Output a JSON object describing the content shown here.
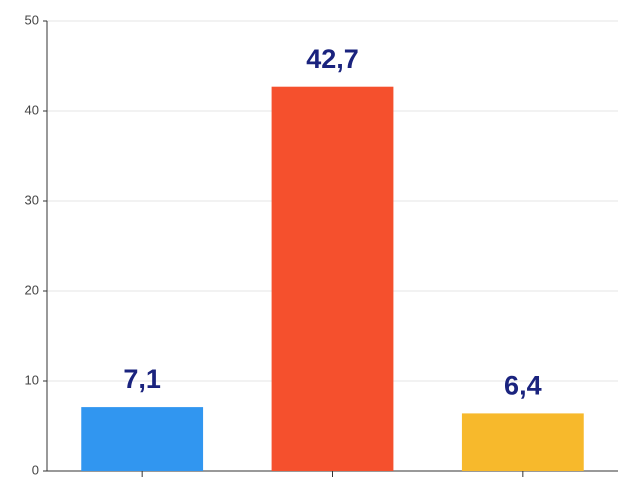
{
  "chart_data": {
    "type": "bar",
    "categories": [
      null,
      null,
      null
    ],
    "values": [
      7.1,
      42.7,
      6.4
    ],
    "value_labels": [
      "7,1",
      "42,7",
      "6,4"
    ],
    "colors": [
      "#3196f0",
      "#f5502d",
      "#f7b92c"
    ],
    "ylim": [
      0,
      50
    ],
    "yticks": [
      0,
      10,
      20,
      30,
      40,
      50
    ],
    "grid": true
  }
}
